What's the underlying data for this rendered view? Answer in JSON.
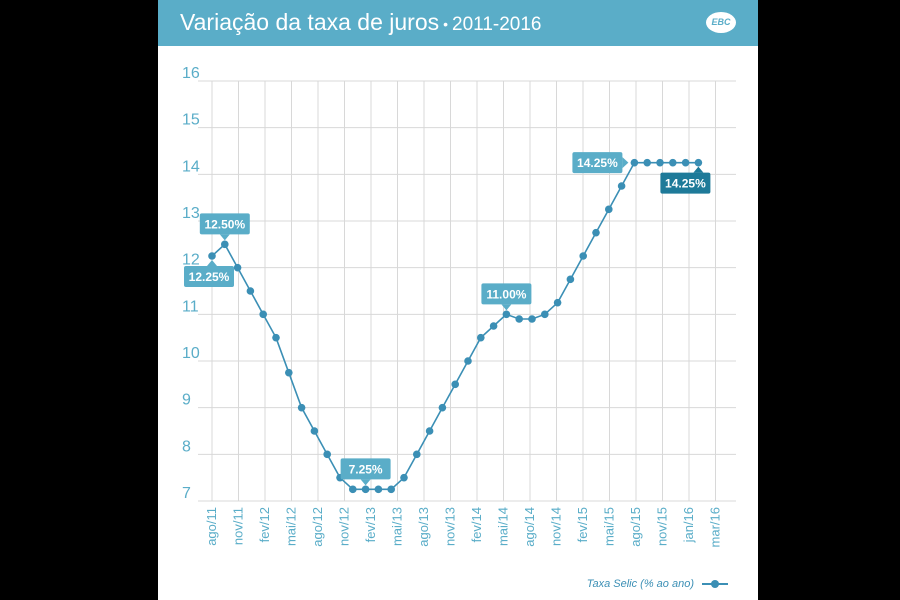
{
  "header": {
    "title": "Variação da taxa de juros",
    "separator": "•",
    "years": "2011-2016",
    "logo": "EBC"
  },
  "colors": {
    "header_bg": "#5aadc8",
    "line": "#3b8fb5",
    "label_bg": "#5aadc8",
    "label_dark": "#1e7a99",
    "grid": "#d8d8d8",
    "tick": "#5aadc8"
  },
  "legend": {
    "label": "Taxa Selic (% ao ano)",
    "icon": "line-dot-icon"
  },
  "chart_data": {
    "type": "line",
    "title": "Variação da taxa de juros • 2011-2016",
    "xlabel": "",
    "ylabel": "",
    "ylim": [
      7,
      16
    ],
    "yticks": [
      7,
      8,
      9,
      10,
      11,
      12,
      13,
      14,
      15,
      16
    ],
    "xticks": [
      "ago/11",
      "nov/11",
      "fev/12",
      "mai/12",
      "ago/12",
      "nov/12",
      "fev/13",
      "mai/13",
      "ago/13",
      "nov/13",
      "fev/14",
      "mai/14",
      "ago/14",
      "nov/14",
      "fev/15",
      "mai/15",
      "ago/15",
      "nov/15",
      "jan/16",
      "mar/16"
    ],
    "series": [
      {
        "name": "Taxa Selic (% ao ano)",
        "values": [
          12.25,
          12.5,
          12.0,
          11.5,
          11.0,
          10.5,
          9.75,
          9.0,
          8.5,
          8.0,
          7.5,
          7.25,
          7.25,
          7.25,
          7.25,
          7.5,
          8.0,
          8.5,
          9.0,
          9.5,
          10.0,
          10.5,
          10.75,
          11.0,
          10.9,
          10.9,
          11.0,
          11.25,
          11.75,
          12.25,
          12.75,
          13.25,
          13.75,
          14.25,
          14.25,
          14.25,
          14.25,
          14.25,
          14.25
        ]
      }
    ],
    "annotations": [
      {
        "index": 0,
        "text": "12.25%",
        "style": "light",
        "position": "below"
      },
      {
        "index": 1,
        "text": "12.50%",
        "style": "light",
        "position": "above"
      },
      {
        "index": 12,
        "text": "7.25%",
        "style": "light",
        "position": "above"
      },
      {
        "index": 23,
        "text": "11.00%",
        "style": "light",
        "position": "above"
      },
      {
        "index": 33,
        "text": "14.25%",
        "style": "light",
        "position": "left"
      },
      {
        "index": 38,
        "text": "14.25%",
        "style": "dark",
        "position": "below"
      }
    ]
  }
}
